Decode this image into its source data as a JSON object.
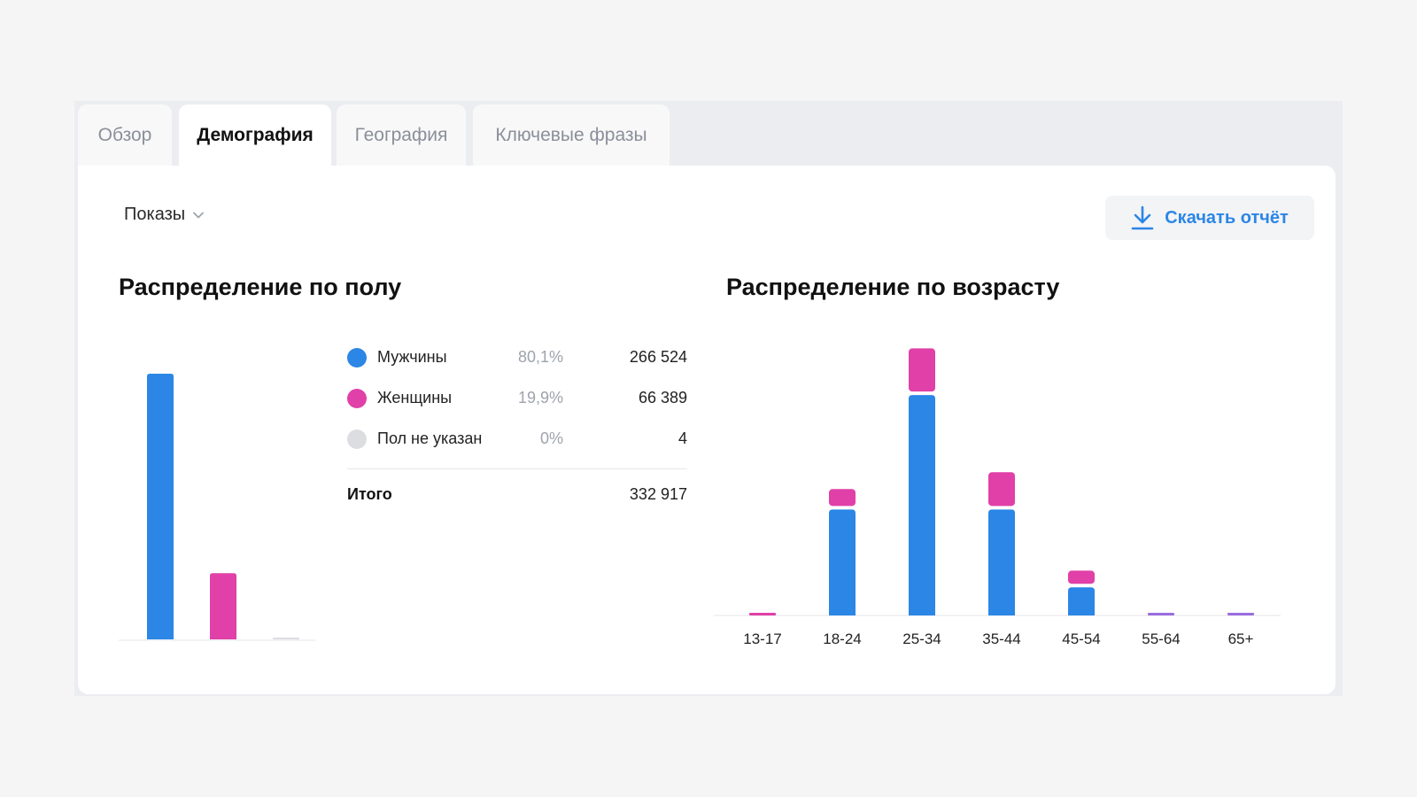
{
  "tabs": [
    {
      "label": "Обзор"
    },
    {
      "label": "Демография"
    },
    {
      "label": "География"
    },
    {
      "label": "Ключевые фразы"
    }
  ],
  "metric_select": {
    "label": "Показы"
  },
  "download_button": {
    "label": "Скачать отчёт"
  },
  "colors": {
    "male": "#2b86e6",
    "female": "#e040a8",
    "unknown": "#dcdde1",
    "other_age": "#9b6de0"
  },
  "gender_section": {
    "title": "Распределение по полу",
    "legend": [
      {
        "name": "Мужчины",
        "percent": "80,1%",
        "value": "266 524"
      },
      {
        "name": "Женщины",
        "percent": "19,9%",
        "value": "66 389"
      },
      {
        "name": "Пол не указан",
        "percent": "0%",
        "value": "4"
      }
    ],
    "total_label": "Итого",
    "total_value": "332 917"
  },
  "age_section": {
    "title": "Распределение по возрасту"
  },
  "chart_data": [
    {
      "type": "bar",
      "categories": [
        "Мужчины",
        "Женщины",
        "Пол не указан"
      ],
      "values": [
        266524,
        66389,
        4
      ]
    },
    {
      "type": "bar",
      "stacked": true,
      "categories": [
        "13-17",
        "18-24",
        "25-34",
        "35-44",
        "45-54",
        "55-64",
        "65+"
      ],
      "series": [
        {
          "name": "Мужчины",
          "values": [
            0,
            1130,
            2350,
            1130,
            300,
            0,
            0
          ]
        },
        {
          "name": "Женщины",
          "values": [
            30,
            180,
            460,
            360,
            140,
            30,
            30
          ]
        }
      ]
    }
  ]
}
